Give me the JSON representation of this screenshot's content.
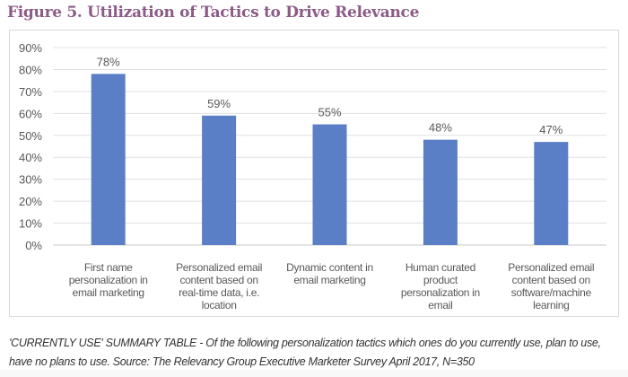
{
  "title": "Figure 5. Utilization of Tactics to Drive Relevance",
  "caption": "'CURRENTLY USE' SUMMARY TABLE - Of the following personalization tactics which ones do you currently use, plan to use, have no plans to use. Source: The Relevancy Group Executive Marketer Survey April 2017, N=350",
  "chart_data": {
    "type": "bar",
    "title": "Figure 5. Utilization of Tactics to Drive Relevance",
    "categories": [
      [
        "First name",
        "personalization in",
        "email marketing"
      ],
      [
        "Personalized email",
        "content based on",
        "real-time data, i.e.",
        "location"
      ],
      [
        "Dynamic content in",
        "email marketing"
      ],
      [
        "Human curated",
        "product",
        "personalization in",
        "email"
      ],
      [
        "Personalized email",
        "content based on",
        "software/machine",
        "learning"
      ]
    ],
    "values": [
      78,
      59,
      55,
      48,
      47
    ],
    "data_labels": [
      "78%",
      "59%",
      "55%",
      "48%",
      "47%"
    ],
    "ylim": [
      0,
      90
    ],
    "yticks": [
      "0%",
      "10%",
      "20%",
      "30%",
      "40%",
      "50%",
      "60%",
      "70%",
      "80%",
      "90%"
    ],
    "grid": true,
    "bar_color": "#5b7fc6",
    "xlabel": "",
    "ylabel": ""
  }
}
